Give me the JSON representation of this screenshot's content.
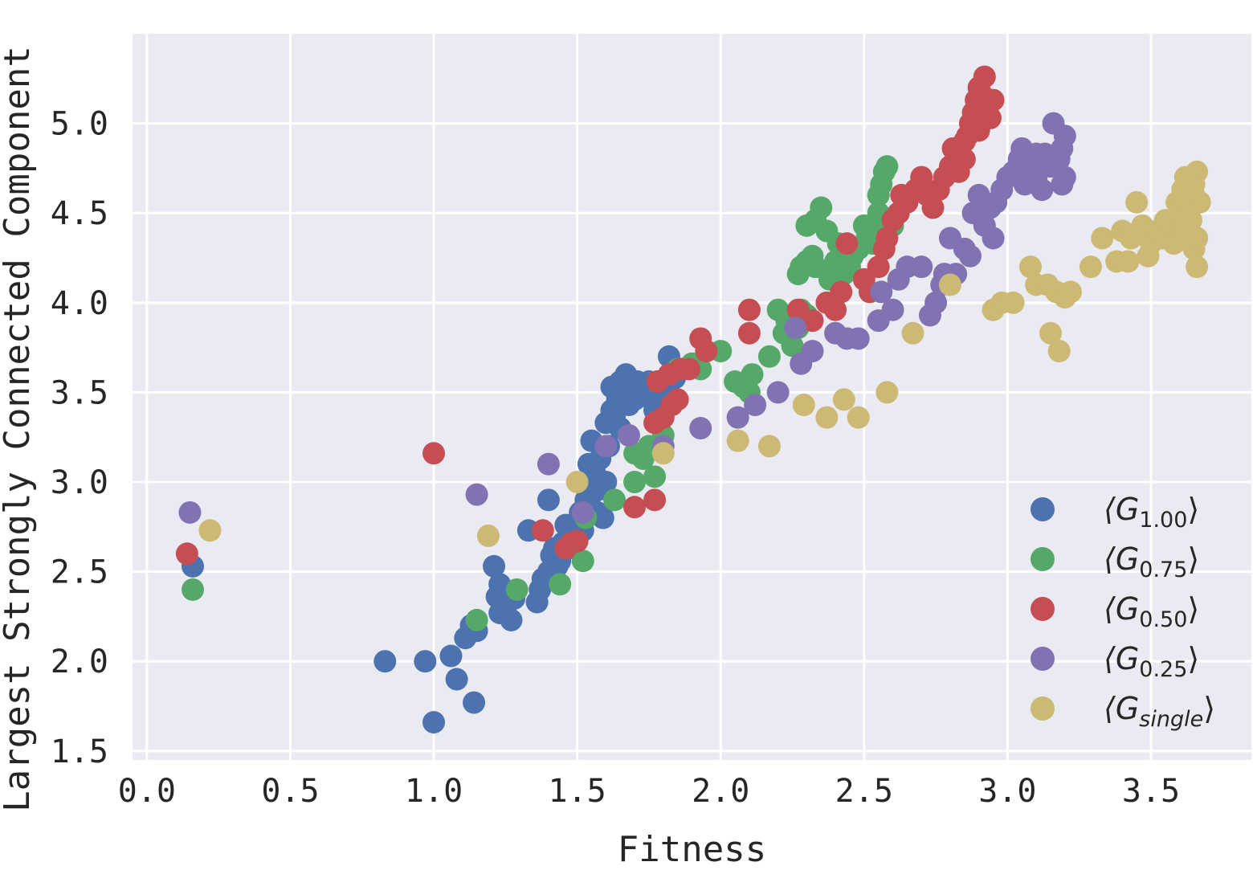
{
  "chart_data": {
    "type": "scatter",
    "xlabel": "Fitness",
    "ylabel": "Largest Strongly Connected Component",
    "xlim": [
      -0.05,
      3.85
    ],
    "ylim": [
      1.45,
      5.5
    ],
    "xticks": [
      "0.0",
      "0.5",
      "1.0",
      "1.5",
      "2.0",
      "2.5",
      "3.0",
      "3.5"
    ],
    "yticks": [
      "1.5",
      "2.0",
      "2.5",
      "3.0",
      "3.5",
      "4.0",
      "4.5",
      "5.0"
    ],
    "grid": true,
    "legend_position": "lower-right",
    "series": [
      {
        "name": "⟨G1.00⟩",
        "label_main": "⟨G",
        "label_sub": "1.00",
        "label_close": "⟩",
        "color": "#4c72b0",
        "points": [
          [
            0.16,
            2.53
          ],
          [
            0.83,
            2.0
          ],
          [
            0.97,
            2.0
          ],
          [
            1.0,
            1.66
          ],
          [
            1.06,
            2.03
          ],
          [
            1.08,
            1.9
          ],
          [
            1.11,
            2.13
          ],
          [
            1.14,
            1.77
          ],
          [
            1.13,
            2.2
          ],
          [
            1.15,
            2.17
          ],
          [
            1.21,
            2.53
          ],
          [
            1.22,
            2.36
          ],
          [
            1.23,
            2.27
          ],
          [
            1.23,
            2.43
          ],
          [
            1.25,
            2.3
          ],
          [
            1.26,
            2.39
          ],
          [
            1.27,
            2.23
          ],
          [
            1.28,
            2.35
          ],
          [
            1.33,
            2.73
          ],
          [
            1.36,
            2.33
          ],
          [
            1.37,
            2.4
          ],
          [
            1.38,
            2.46
          ],
          [
            1.4,
            2.5
          ],
          [
            1.41,
            2.59
          ],
          [
            1.4,
            2.9
          ],
          [
            1.42,
            2.63
          ],
          [
            1.43,
            2.53
          ],
          [
            1.44,
            2.56
          ],
          [
            1.45,
            2.66
          ],
          [
            1.46,
            2.76
          ],
          [
            1.47,
            2.63
          ],
          [
            1.48,
            2.7
          ],
          [
            1.5,
            2.76
          ],
          [
            1.51,
            2.83
          ],
          [
            1.52,
            2.73
          ],
          [
            1.53,
            2.9
          ],
          [
            1.53,
            3.0
          ],
          [
            1.54,
            3.1
          ],
          [
            1.55,
            3.23
          ],
          [
            1.55,
            2.93
          ],
          [
            1.56,
            3.06
          ],
          [
            1.57,
            2.83
          ],
          [
            1.58,
            2.96
          ],
          [
            1.58,
            3.13
          ],
          [
            1.59,
            2.8
          ],
          [
            1.6,
            3.33
          ],
          [
            1.6,
            3.0
          ],
          [
            1.61,
            3.2
          ],
          [
            1.62,
            3.53
          ],
          [
            1.62,
            3.4
          ],
          [
            1.63,
            3.36
          ],
          [
            1.64,
            3.46
          ],
          [
            1.65,
            3.56
          ],
          [
            1.65,
            3.3
          ],
          [
            1.66,
            3.5
          ],
          [
            1.67,
            3.6
          ],
          [
            1.68,
            3.43
          ],
          [
            1.69,
            3.53
          ],
          [
            1.7,
            3.46
          ],
          [
            1.71,
            3.56
          ],
          [
            1.72,
            3.5
          ],
          [
            1.74,
            3.53
          ],
          [
            1.75,
            3.56
          ],
          [
            1.76,
            3.46
          ],
          [
            1.77,
            3.4
          ],
          [
            1.78,
            3.56
          ],
          [
            1.79,
            3.5
          ],
          [
            1.8,
            3.53
          ],
          [
            1.81,
            3.46
          ],
          [
            1.82,
            3.7
          ],
          [
            1.84,
            3.58
          ]
        ]
      },
      {
        "name": "⟨G0.75⟩",
        "label_main": "⟨G",
        "label_sub": "0.75",
        "label_close": "⟩",
        "color": "#55a868",
        "points": [
          [
            0.16,
            2.4
          ],
          [
            1.15,
            2.23
          ],
          [
            1.29,
            2.4
          ],
          [
            1.44,
            2.43
          ],
          [
            1.52,
            2.56
          ],
          [
            1.53,
            2.8
          ],
          [
            1.63,
            2.9
          ],
          [
            1.7,
            3.0
          ],
          [
            1.73,
            3.13
          ],
          [
            1.77,
            3.03
          ],
          [
            1.7,
            3.16
          ],
          [
            1.75,
            3.2
          ],
          [
            1.8,
            3.26
          ],
          [
            1.85,
            3.63
          ],
          [
            1.9,
            3.66
          ],
          [
            1.93,
            3.63
          ],
          [
            2.0,
            3.73
          ],
          [
            2.05,
            3.56
          ],
          [
            2.08,
            3.53
          ],
          [
            2.1,
            3.5
          ],
          [
            2.11,
            3.6
          ],
          [
            2.17,
            3.7
          ],
          [
            2.2,
            3.96
          ],
          [
            2.22,
            3.83
          ],
          [
            2.23,
            3.9
          ],
          [
            2.25,
            3.76
          ],
          [
            2.27,
            3.86
          ],
          [
            2.28,
            3.96
          ],
          [
            2.3,
            3.93
          ],
          [
            2.27,
            4.16
          ],
          [
            2.28,
            4.2
          ],
          [
            2.3,
            4.23
          ],
          [
            2.32,
            4.26
          ],
          [
            2.33,
            4.2
          ],
          [
            2.3,
            4.43
          ],
          [
            2.33,
            4.46
          ],
          [
            2.35,
            4.53
          ],
          [
            2.37,
            4.4
          ],
          [
            2.38,
            4.13
          ],
          [
            2.4,
            4.23
          ],
          [
            2.41,
            4.33
          ],
          [
            2.43,
            4.16
          ],
          [
            2.45,
            4.2
          ],
          [
            2.46,
            4.26
          ],
          [
            2.48,
            4.3
          ],
          [
            2.5,
            4.43
          ],
          [
            2.51,
            4.36
          ],
          [
            2.53,
            4.33
          ],
          [
            2.55,
            4.6
          ],
          [
            2.56,
            4.66
          ],
          [
            2.57,
            4.73
          ],
          [
            2.58,
            4.76
          ],
          [
            2.55,
            4.5
          ],
          [
            2.53,
            4.4
          ],
          [
            2.6,
            4.43
          ]
        ]
      },
      {
        "name": "⟨G0.50⟩",
        "label_main": "⟨G",
        "label_sub": "0.50",
        "label_close": "⟩",
        "color": "#c44e52",
        "points": [
          [
            0.14,
            2.6
          ],
          [
            1.0,
            3.16
          ],
          [
            1.38,
            2.73
          ],
          [
            1.46,
            2.63
          ],
          [
            1.48,
            2.66
          ],
          [
            1.5,
            2.67
          ],
          [
            1.7,
            2.86
          ],
          [
            1.77,
            2.9
          ],
          [
            1.77,
            3.33
          ],
          [
            1.8,
            3.36
          ],
          [
            1.83,
            3.43
          ],
          [
            1.85,
            3.46
          ],
          [
            1.78,
            3.56
          ],
          [
            1.82,
            3.6
          ],
          [
            1.86,
            3.63
          ],
          [
            1.89,
            3.63
          ],
          [
            1.93,
            3.8
          ],
          [
            1.95,
            3.73
          ],
          [
            2.1,
            3.83
          ],
          [
            2.1,
            3.96
          ],
          [
            2.27,
            3.96
          ],
          [
            2.32,
            3.9
          ],
          [
            2.37,
            4.0
          ],
          [
            2.4,
            3.96
          ],
          [
            2.42,
            4.06
          ],
          [
            2.44,
            4.33
          ],
          [
            2.5,
            4.13
          ],
          [
            2.52,
            4.06
          ],
          [
            2.55,
            4.2
          ],
          [
            2.57,
            4.3
          ],
          [
            2.58,
            4.36
          ],
          [
            2.6,
            4.46
          ],
          [
            2.62,
            4.5
          ],
          [
            2.63,
            4.6
          ],
          [
            2.65,
            4.56
          ],
          [
            2.68,
            4.63
          ],
          [
            2.7,
            4.7
          ],
          [
            2.72,
            4.6
          ],
          [
            2.74,
            4.53
          ],
          [
            2.76,
            4.63
          ],
          [
            2.78,
            4.7
          ],
          [
            2.8,
            4.76
          ],
          [
            2.81,
            4.86
          ],
          [
            2.83,
            4.73
          ],
          [
            2.85,
            4.8
          ],
          [
            2.86,
            4.93
          ],
          [
            2.87,
            5.0
          ],
          [
            2.88,
            5.06
          ],
          [
            2.89,
            5.13
          ],
          [
            2.9,
            5.2
          ],
          [
            2.91,
            5.16
          ],
          [
            2.92,
            5.26
          ],
          [
            2.93,
            5.1
          ],
          [
            2.94,
            5.03
          ],
          [
            2.95,
            5.13
          ],
          [
            2.9,
            4.96
          ],
          [
            2.85,
            4.9
          ],
          [
            2.82,
            4.8
          ]
        ]
      },
      {
        "name": "⟨G0.25⟩",
        "label_main": "⟨G",
        "label_sub": "0.25",
        "label_close": "⟩",
        "color": "#8172b2",
        "points": [
          [
            0.15,
            2.83
          ],
          [
            1.15,
            2.93
          ],
          [
            1.4,
            3.1
          ],
          [
            1.52,
            2.83
          ],
          [
            1.6,
            3.2
          ],
          [
            1.68,
            3.26
          ],
          [
            1.8,
            3.2
          ],
          [
            1.93,
            3.3
          ],
          [
            2.06,
            3.36
          ],
          [
            2.12,
            3.43
          ],
          [
            2.2,
            3.5
          ],
          [
            2.26,
            3.86
          ],
          [
            2.28,
            3.66
          ],
          [
            2.32,
            3.73
          ],
          [
            2.4,
            3.83
          ],
          [
            2.44,
            3.8
          ],
          [
            2.48,
            3.8
          ],
          [
            2.55,
            3.9
          ],
          [
            2.56,
            4.06
          ],
          [
            2.6,
            3.96
          ],
          [
            2.62,
            4.13
          ],
          [
            2.65,
            4.2
          ],
          [
            2.7,
            4.2
          ],
          [
            2.73,
            3.93
          ],
          [
            2.75,
            4.0
          ],
          [
            2.77,
            4.1
          ],
          [
            2.78,
            4.16
          ],
          [
            2.8,
            4.36
          ],
          [
            2.82,
            4.16
          ],
          [
            2.85,
            4.3
          ],
          [
            2.87,
            4.26
          ],
          [
            2.88,
            4.5
          ],
          [
            2.9,
            4.6
          ],
          [
            2.92,
            4.43
          ],
          [
            2.94,
            4.53
          ],
          [
            2.96,
            4.56
          ],
          [
            2.98,
            4.63
          ],
          [
            3.0,
            4.7
          ],
          [
            3.02,
            4.73
          ],
          [
            3.04,
            4.8
          ],
          [
            3.05,
            4.86
          ],
          [
            3.06,
            4.66
          ],
          [
            3.08,
            4.76
          ],
          [
            3.1,
            4.83
          ],
          [
            3.1,
            4.7
          ],
          [
            3.12,
            4.63
          ],
          [
            3.13,
            4.83
          ],
          [
            3.15,
            4.76
          ],
          [
            3.16,
            5.0
          ],
          [
            3.18,
            4.8
          ],
          [
            3.19,
            4.86
          ],
          [
            3.2,
            4.93
          ],
          [
            3.2,
            4.7
          ],
          [
            3.19,
            4.66
          ],
          [
            2.95,
            4.36
          ]
        ]
      },
      {
        "name": "⟨Gsingle⟩",
        "label_main": "⟨G",
        "label_sub": "single",
        "label_close": "⟩",
        "color": "#ccb974",
        "points": [
          [
            0.22,
            2.73
          ],
          [
            1.19,
            2.7
          ],
          [
            1.5,
            3.0
          ],
          [
            1.8,
            3.16
          ],
          [
            2.06,
            3.23
          ],
          [
            2.17,
            3.2
          ],
          [
            2.29,
            3.43
          ],
          [
            2.37,
            3.36
          ],
          [
            2.43,
            3.46
          ],
          [
            2.48,
            3.36
          ],
          [
            2.58,
            3.5
          ],
          [
            2.67,
            3.83
          ],
          [
            2.8,
            4.1
          ],
          [
            2.95,
            3.96
          ],
          [
            2.98,
            4.0
          ],
          [
            3.02,
            4.0
          ],
          [
            3.08,
            4.2
          ],
          [
            3.1,
            4.1
          ],
          [
            3.14,
            4.1
          ],
          [
            3.15,
            3.83
          ],
          [
            3.17,
            4.06
          ],
          [
            3.18,
            3.73
          ],
          [
            3.2,
            4.03
          ],
          [
            3.22,
            4.06
          ],
          [
            3.29,
            4.2
          ],
          [
            3.33,
            4.36
          ],
          [
            3.38,
            4.23
          ],
          [
            3.4,
            4.4
          ],
          [
            3.42,
            4.23
          ],
          [
            3.43,
            4.36
          ],
          [
            3.45,
            4.56
          ],
          [
            3.47,
            4.43
          ],
          [
            3.49,
            4.26
          ],
          [
            3.5,
            4.33
          ],
          [
            3.52,
            4.4
          ],
          [
            3.54,
            4.36
          ],
          [
            3.55,
            4.46
          ],
          [
            3.57,
            4.43
          ],
          [
            3.58,
            4.33
          ],
          [
            3.59,
            4.56
          ],
          [
            3.6,
            4.5
          ],
          [
            3.61,
            4.63
          ],
          [
            3.62,
            4.4
          ],
          [
            3.62,
            4.7
          ],
          [
            3.63,
            4.53
          ],
          [
            3.64,
            4.46
          ],
          [
            3.65,
            4.6
          ],
          [
            3.65,
            4.3
          ],
          [
            3.66,
            4.73
          ],
          [
            3.66,
            4.36
          ],
          [
            3.67,
            4.56
          ],
          [
            3.66,
            4.2
          ],
          [
            3.65,
            4.66
          ]
        ]
      }
    ]
  }
}
